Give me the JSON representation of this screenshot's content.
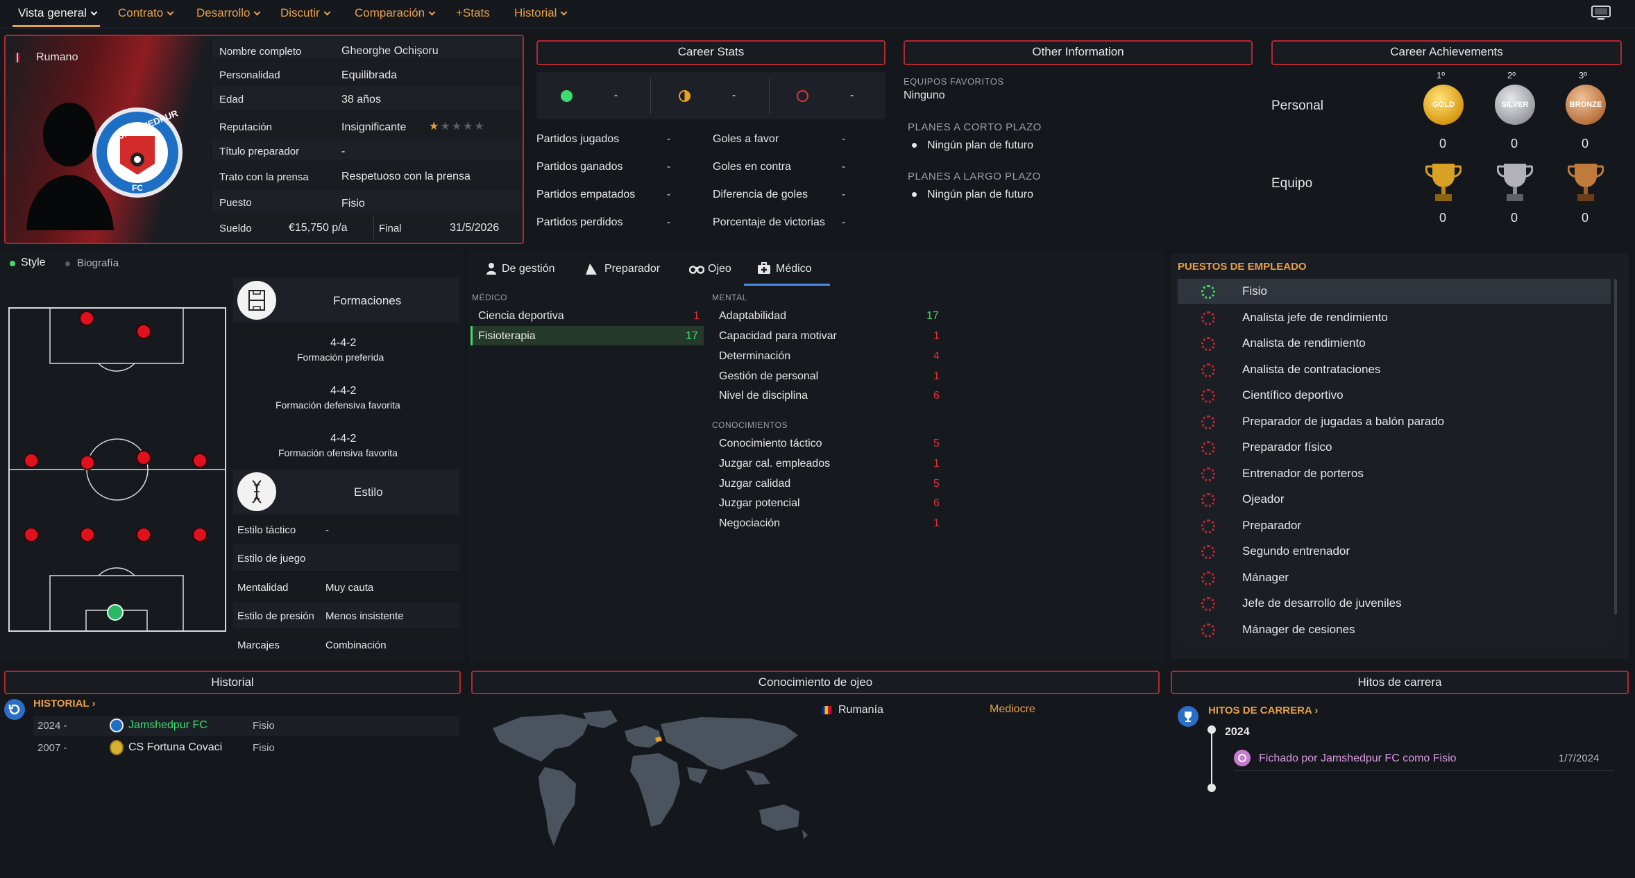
{
  "nav": {
    "items": [
      "Vista general",
      "Contrato",
      "Desarrollo",
      "Discutir",
      "Comparación",
      "+Stats",
      "Historial"
    ],
    "active": "Vista general"
  },
  "profile": {
    "nationality": "Rumano",
    "club_logo_text_top": "JAMSHEDPUR",
    "club_logo_text_bottom": "FC",
    "fields": [
      {
        "label": "Nombre completo",
        "value": "Gheorghe Ochișoru"
      },
      {
        "label": "Personalidad",
        "value": "Equilibrada"
      },
      {
        "label": "Edad",
        "value": "38 años"
      },
      {
        "label": "Reputación",
        "value": "Insignificante"
      },
      {
        "label": "Título preparador",
        "value": "-"
      },
      {
        "label": "Trato con la prensa",
        "value": "Respetuoso con la prensa"
      },
      {
        "label": "Puesto",
        "value": "Fisio"
      }
    ],
    "reputation_stars": 0.5,
    "wage_label": "Sueldo",
    "wage_value": "€15,750 p/a",
    "end_label": "Final",
    "end_value": "31/5/2026"
  },
  "career_stats": {
    "title": "Career Stats",
    "icon_values": [
      "-",
      "-",
      "-"
    ],
    "rows_left": [
      {
        "label": "Partidos jugados",
        "value": "-"
      },
      {
        "label": "Partidos ganados",
        "value": "-"
      },
      {
        "label": "Partidos empatados",
        "value": "-"
      },
      {
        "label": "Partidos perdidos",
        "value": "-"
      }
    ],
    "rows_right": [
      {
        "label": "Goles a favor",
        "value": "-"
      },
      {
        "label": "Goles en contra",
        "value": "-"
      },
      {
        "label": "Diferencia de goles",
        "value": "-"
      },
      {
        "label": "Porcentaje de victorias",
        "value": "-"
      }
    ]
  },
  "other_info": {
    "title": "Other Information",
    "fav_teams_label": "EQUIPOS FAVORITOS",
    "fav_teams_value": "Ninguno",
    "short_term_label": "PLANES A CORTO PLAZO",
    "short_term_value": "Ningún plan de futuro",
    "long_term_label": "PLANES A LARGO PLAZO",
    "long_term_value": "Ningún plan de futuro"
  },
  "achievements": {
    "title": "Career Achievements",
    "places": [
      "1º",
      "2º",
      "3º"
    ],
    "medal_labels": [
      "GOLD",
      "SILVER",
      "BRONZE"
    ],
    "personal_label": "Personal",
    "team_label": "Equipo",
    "personal_counts": [
      "0",
      "0",
      "0"
    ],
    "team_counts": [
      "0",
      "0",
      "0"
    ]
  },
  "style_tabs": {
    "style": "Style",
    "bio": "Biografía"
  },
  "formations": {
    "header": "Formaciones",
    "items": [
      {
        "value": "4-4-2",
        "label": "Formación preferida"
      },
      {
        "value": "4-4-2",
        "label": "Formación defensiva favorita"
      },
      {
        "value": "4-4-2",
        "label": "Formación ofensiva favorita"
      }
    ]
  },
  "style": {
    "header": "Estilo",
    "rows": [
      {
        "label": "Estilo táctico",
        "value": "-"
      },
      {
        "label": "Estilo de juego",
        "value": ""
      },
      {
        "label": "Mentalidad",
        "value": "Muy cauta"
      },
      {
        "label": "Estilo de presión",
        "value": "Menos insistente"
      },
      {
        "label": "Marcajes",
        "value": "Combinación"
      }
    ]
  },
  "attr_tabs": [
    "De gestión",
    "Preparador",
    "Ojeo",
    "Médico"
  ],
  "attr_tab_active": "Médico",
  "medical": {
    "header": "MÉDICO",
    "rows": [
      {
        "label": "Ciencia deportiva",
        "value": "1"
      },
      {
        "label": "Fisioterapia",
        "value": "17"
      }
    ]
  },
  "mental": {
    "header": "MENTAL",
    "rows": [
      {
        "label": "Adaptabilidad",
        "value": "17"
      },
      {
        "label": "Capacidad para motivar",
        "value": "1"
      },
      {
        "label": "Determinación",
        "value": "4"
      },
      {
        "label": "Gestión de personal",
        "value": "1"
      },
      {
        "label": "Nivel de disciplina",
        "value": "6"
      }
    ]
  },
  "knowledge": {
    "header": "CONOCIMIENTOS",
    "rows": [
      {
        "label": "Conocimiento táctico",
        "value": "5"
      },
      {
        "label": "Juzgar cal. empleados",
        "value": "1"
      },
      {
        "label": "Juzgar calidad",
        "value": "5"
      },
      {
        "label": "Juzgar potencial",
        "value": "6"
      },
      {
        "label": "Negociación",
        "value": "1"
      }
    ]
  },
  "employee_roles": {
    "header": "PUESTOS DE EMPLEADO",
    "items": [
      "Fisio",
      "Analista jefe de rendimiento",
      "Analista de rendimiento",
      "Analista de contrataciones",
      "Científico deportivo",
      "Preparador de jugadas a balón parado",
      "Preparador físico",
      "Entrenador de porteros",
      "Ojeador",
      "Preparador",
      "Segundo entrenador",
      "Mánager",
      "Jefe de desarrollo de juveniles",
      "Mánager de cesiones"
    ],
    "selected": "Fisio"
  },
  "history": {
    "title": "Historial",
    "link": "HISTORIAL",
    "rows": [
      {
        "year": "2024 -",
        "club": "Jamshedpur FC",
        "role": "Fisio"
      },
      {
        "year": "2007 -",
        "club": "CS Fortuna Covaci",
        "role": "Fisio"
      }
    ]
  },
  "scouting": {
    "title": "Conocimiento de ojeo",
    "country": "Rumanía",
    "level": "Mediocre"
  },
  "milestones": {
    "title": "Hitos de carrera",
    "link": "HITOS DE CARRERA",
    "year": "2024",
    "event": "Fichado por Jamshedpur FC como Fisio",
    "date": "1/7/2024"
  },
  "colors": {
    "accent": "#e8a04a",
    "border": "#b3282f",
    "positive": "#3ddc6e",
    "negative": "#e0333b"
  }
}
